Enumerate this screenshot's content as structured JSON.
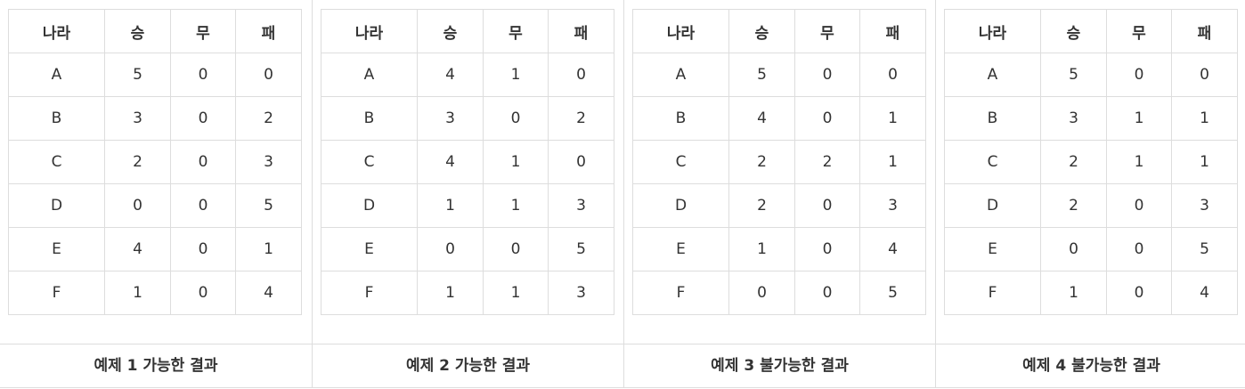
{
  "headers": [
    "나라",
    "승",
    "무",
    "패"
  ],
  "examples": [
    {
      "caption": "예제 1 가능한 결과",
      "rows": [
        [
          "A",
          "5",
          "0",
          "0"
        ],
        [
          "B",
          "3",
          "0",
          "2"
        ],
        [
          "C",
          "2",
          "0",
          "3"
        ],
        [
          "D",
          "0",
          "0",
          "5"
        ],
        [
          "E",
          "4",
          "0",
          "1"
        ],
        [
          "F",
          "1",
          "0",
          "4"
        ]
      ]
    },
    {
      "caption": "예제 2 가능한 결과",
      "rows": [
        [
          "A",
          "4",
          "1",
          "0"
        ],
        [
          "B",
          "3",
          "0",
          "2"
        ],
        [
          "C",
          "4",
          "1",
          "0"
        ],
        [
          "D",
          "1",
          "1",
          "3"
        ],
        [
          "E",
          "0",
          "0",
          "5"
        ],
        [
          "F",
          "1",
          "1",
          "3"
        ]
      ]
    },
    {
      "caption": "예제 3 불가능한 결과",
      "rows": [
        [
          "A",
          "5",
          "0",
          "0"
        ],
        [
          "B",
          "4",
          "0",
          "1"
        ],
        [
          "C",
          "2",
          "2",
          "1"
        ],
        [
          "D",
          "2",
          "0",
          "3"
        ],
        [
          "E",
          "1",
          "0",
          "4"
        ],
        [
          "F",
          "0",
          "0",
          "5"
        ]
      ]
    },
    {
      "caption": "예제 4 불가능한 결과",
      "rows": [
        [
          "A",
          "5",
          "0",
          "0"
        ],
        [
          "B",
          "3",
          "1",
          "1"
        ],
        [
          "C",
          "2",
          "1",
          "1"
        ],
        [
          "D",
          "2",
          "0",
          "3"
        ],
        [
          "E",
          "0",
          "0",
          "5"
        ],
        [
          "F",
          "1",
          "0",
          "4"
        ]
      ]
    }
  ]
}
